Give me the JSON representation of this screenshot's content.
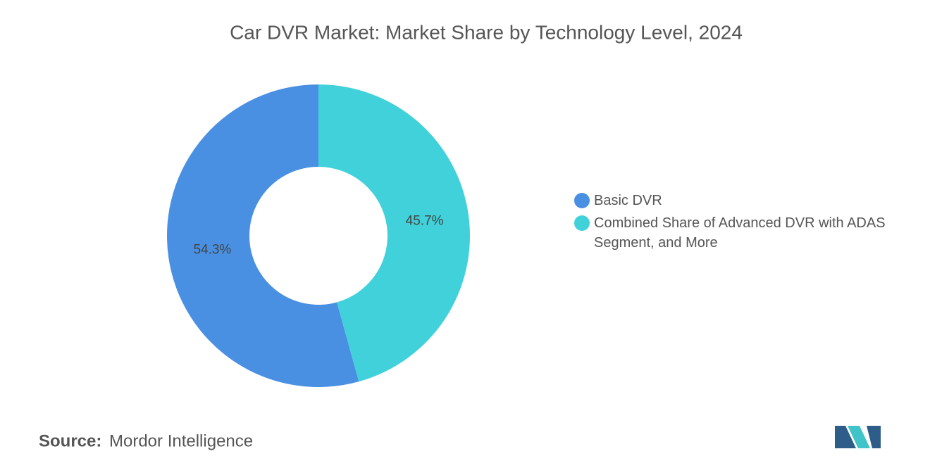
{
  "chart_data": {
    "type": "donut",
    "title": "Car DVR Market: Market Share by Technology Level, 2024",
    "categories": [
      "Basic DVR",
      "Combined Share of Advanced DVR with ADAS Segment, and More"
    ],
    "values": [
      54.3,
      45.7
    ],
    "value_labels": [
      "54.3%",
      "45.7%"
    ],
    "colors": [
      "#4a90e2",
      "#40d1da"
    ],
    "source_label": "Source:",
    "source": "Mordor Intelligence"
  }
}
